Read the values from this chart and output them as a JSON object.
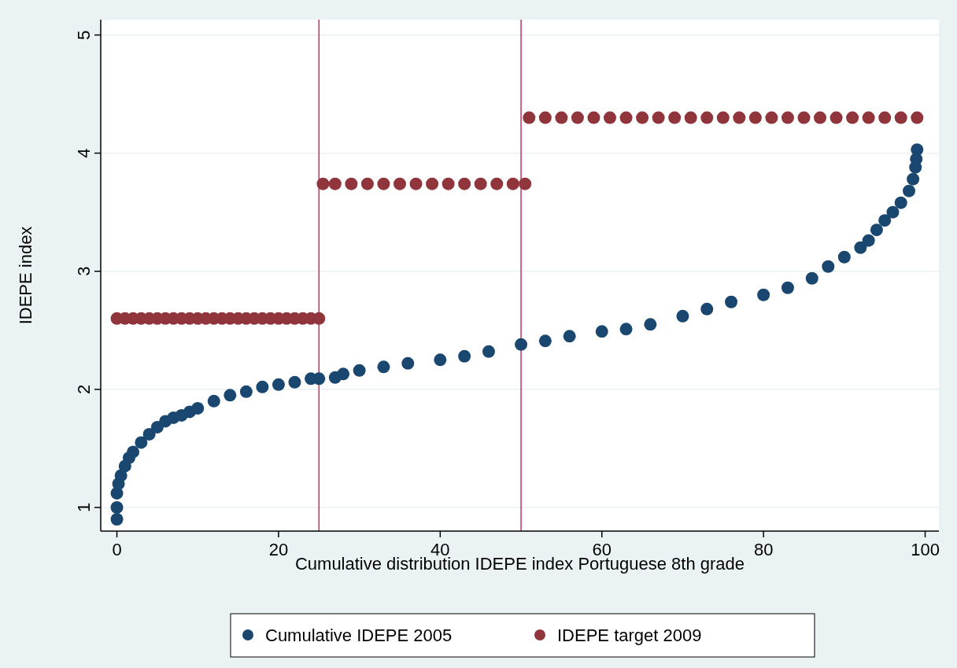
{
  "chart_data": {
    "type": "scatter",
    "xlabel": "Cumulative distribution IDEPE index Portuguese 8th grade",
    "ylabel": "IDEPE index",
    "xlim": [
      -2,
      101.7
    ],
    "ylim": [
      0.8,
      5.13
    ],
    "xticks": [
      0,
      20,
      40,
      60,
      80,
      100
    ],
    "yticks": [
      1,
      2,
      3,
      4,
      5
    ],
    "grid": "y",
    "legend": "bottom",
    "marker": "circle",
    "ref_lines": [
      {
        "axis": "x",
        "value": 25,
        "color": "#c8305a"
      },
      {
        "axis": "x",
        "value": 50,
        "color": "#c8305a"
      }
    ],
    "series": [
      {
        "name": "Cumulative IDEPE 2005",
        "color": "#1a476f",
        "x": [
          0,
          0,
          0,
          0.2,
          0.5,
          1,
          1.5,
          2,
          3,
          4,
          5,
          6,
          7,
          8,
          9,
          10,
          12,
          14,
          16,
          18,
          20,
          22,
          24,
          25,
          27,
          28,
          30,
          33,
          36,
          40,
          43,
          46,
          50,
          53,
          56,
          60,
          63,
          66,
          70,
          73,
          76,
          80,
          83,
          86,
          88,
          90,
          92,
          93,
          94,
          95,
          96,
          97,
          98,
          98.5,
          98.8,
          98.9,
          99
        ],
        "values": [
          0.9,
          1.0,
          1.12,
          1.2,
          1.27,
          1.35,
          1.42,
          1.47,
          1.55,
          1.62,
          1.68,
          1.73,
          1.76,
          1.78,
          1.81,
          1.84,
          1.9,
          1.95,
          1.98,
          2.02,
          2.04,
          2.06,
          2.09,
          2.09,
          2.1,
          2.13,
          2.16,
          2.19,
          2.22,
          2.25,
          2.28,
          2.32,
          2.38,
          2.41,
          2.45,
          2.49,
          2.51,
          2.55,
          2.62,
          2.68,
          2.74,
          2.8,
          2.86,
          2.94,
          3.04,
          3.12,
          3.2,
          3.26,
          3.35,
          3.43,
          3.5,
          3.58,
          3.68,
          3.78,
          3.88,
          3.95,
          4.03
        ]
      },
      {
        "name": "IDEPE target 2009",
        "color": "#90353b",
        "x": [
          0,
          1,
          2,
          3,
          4,
          5,
          6,
          7,
          8,
          9,
          10,
          11,
          12,
          13,
          14,
          15,
          16,
          17,
          18,
          19,
          20,
          21,
          22,
          23,
          24,
          25,
          25.5,
          27,
          29,
          31,
          33,
          35,
          37,
          39,
          41,
          43,
          45,
          47,
          49,
          50.5,
          51,
          53,
          55,
          57,
          59,
          61,
          63,
          65,
          67,
          69,
          71,
          73,
          75,
          77,
          79,
          81,
          83,
          85,
          87,
          89,
          91,
          93,
          95,
          97,
          99
        ],
        "values": [
          2.6,
          2.6,
          2.6,
          2.6,
          2.6,
          2.6,
          2.6,
          2.6,
          2.6,
          2.6,
          2.6,
          2.6,
          2.6,
          2.6,
          2.6,
          2.6,
          2.6,
          2.6,
          2.6,
          2.6,
          2.6,
          2.6,
          2.6,
          2.6,
          2.6,
          2.6,
          3.74,
          3.74,
          3.74,
          3.74,
          3.74,
          3.74,
          3.74,
          3.74,
          3.74,
          3.74,
          3.74,
          3.74,
          3.74,
          3.74,
          4.3,
          4.3,
          4.3,
          4.3,
          4.3,
          4.3,
          4.3,
          4.3,
          4.3,
          4.3,
          4.3,
          4.3,
          4.3,
          4.3,
          4.3,
          4.3,
          4.3,
          4.3,
          4.3,
          4.3,
          4.3,
          4.3,
          4.3,
          4.3,
          4.3
        ]
      }
    ]
  }
}
